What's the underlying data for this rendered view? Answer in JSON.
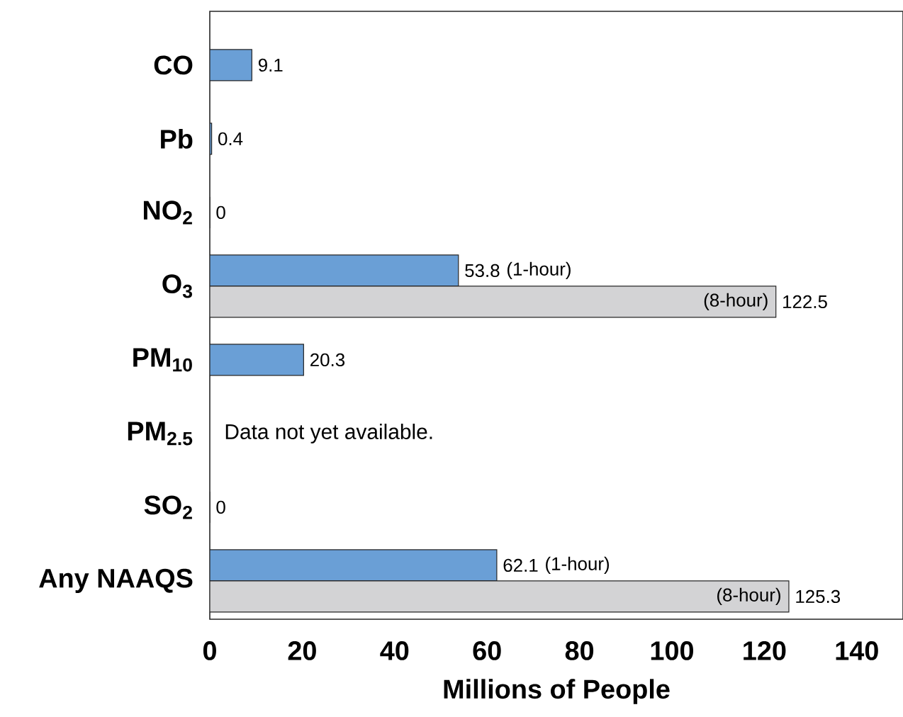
{
  "chart_data": {
    "type": "bar",
    "orientation": "horizontal",
    "xlabel": "Millions of People",
    "categories": [
      "CO",
      "Pb",
      "NO$_{2}$",
      "O$_{3}$",
      "PM$_{10}$",
      "PM$_{2.5}$",
      "SO$_{2}$",
      "Any NAAQS"
    ],
    "series": [
      {
        "color": "#6a9fd6",
        "values": [
          9.1,
          0.4,
          0,
          53.8,
          20.3,
          null,
          0,
          62.1
        ],
        "value_labels": [
          "9.1",
          "0.4",
          "0",
          "53.8",
          "20.3",
          null,
          "0",
          "62.1"
        ]
      },
      {
        "color": "#d3d3d5",
        "values": [
          null,
          null,
          null,
          122.5,
          null,
          null,
          null,
          125.3
        ],
        "value_labels": [
          null,
          null,
          null,
          "122.5",
          null,
          null,
          null,
          "125.3"
        ]
      }
    ],
    "xlim": [
      0,
      150
    ],
    "xticks": [
      0,
      20,
      40,
      60,
      80,
      100,
      120,
      140
    ],
    "grid": false,
    "annotations": [
      {
        "text": "(1-hour)",
        "x": 53.8,
        "y": "O$_{3}$"
      },
      {
        "text": "(8-hour)",
        "x": 122.5,
        "y": "O$_{3}$"
      },
      {
        "text": "(1-hour)",
        "x": 62.1,
        "y": "Any NAAQS"
      },
      {
        "text": "(8-hour)",
        "x": 125.3,
        "y": "Any NAAQS"
      },
      "Data not yet available."
    ]
  }
}
